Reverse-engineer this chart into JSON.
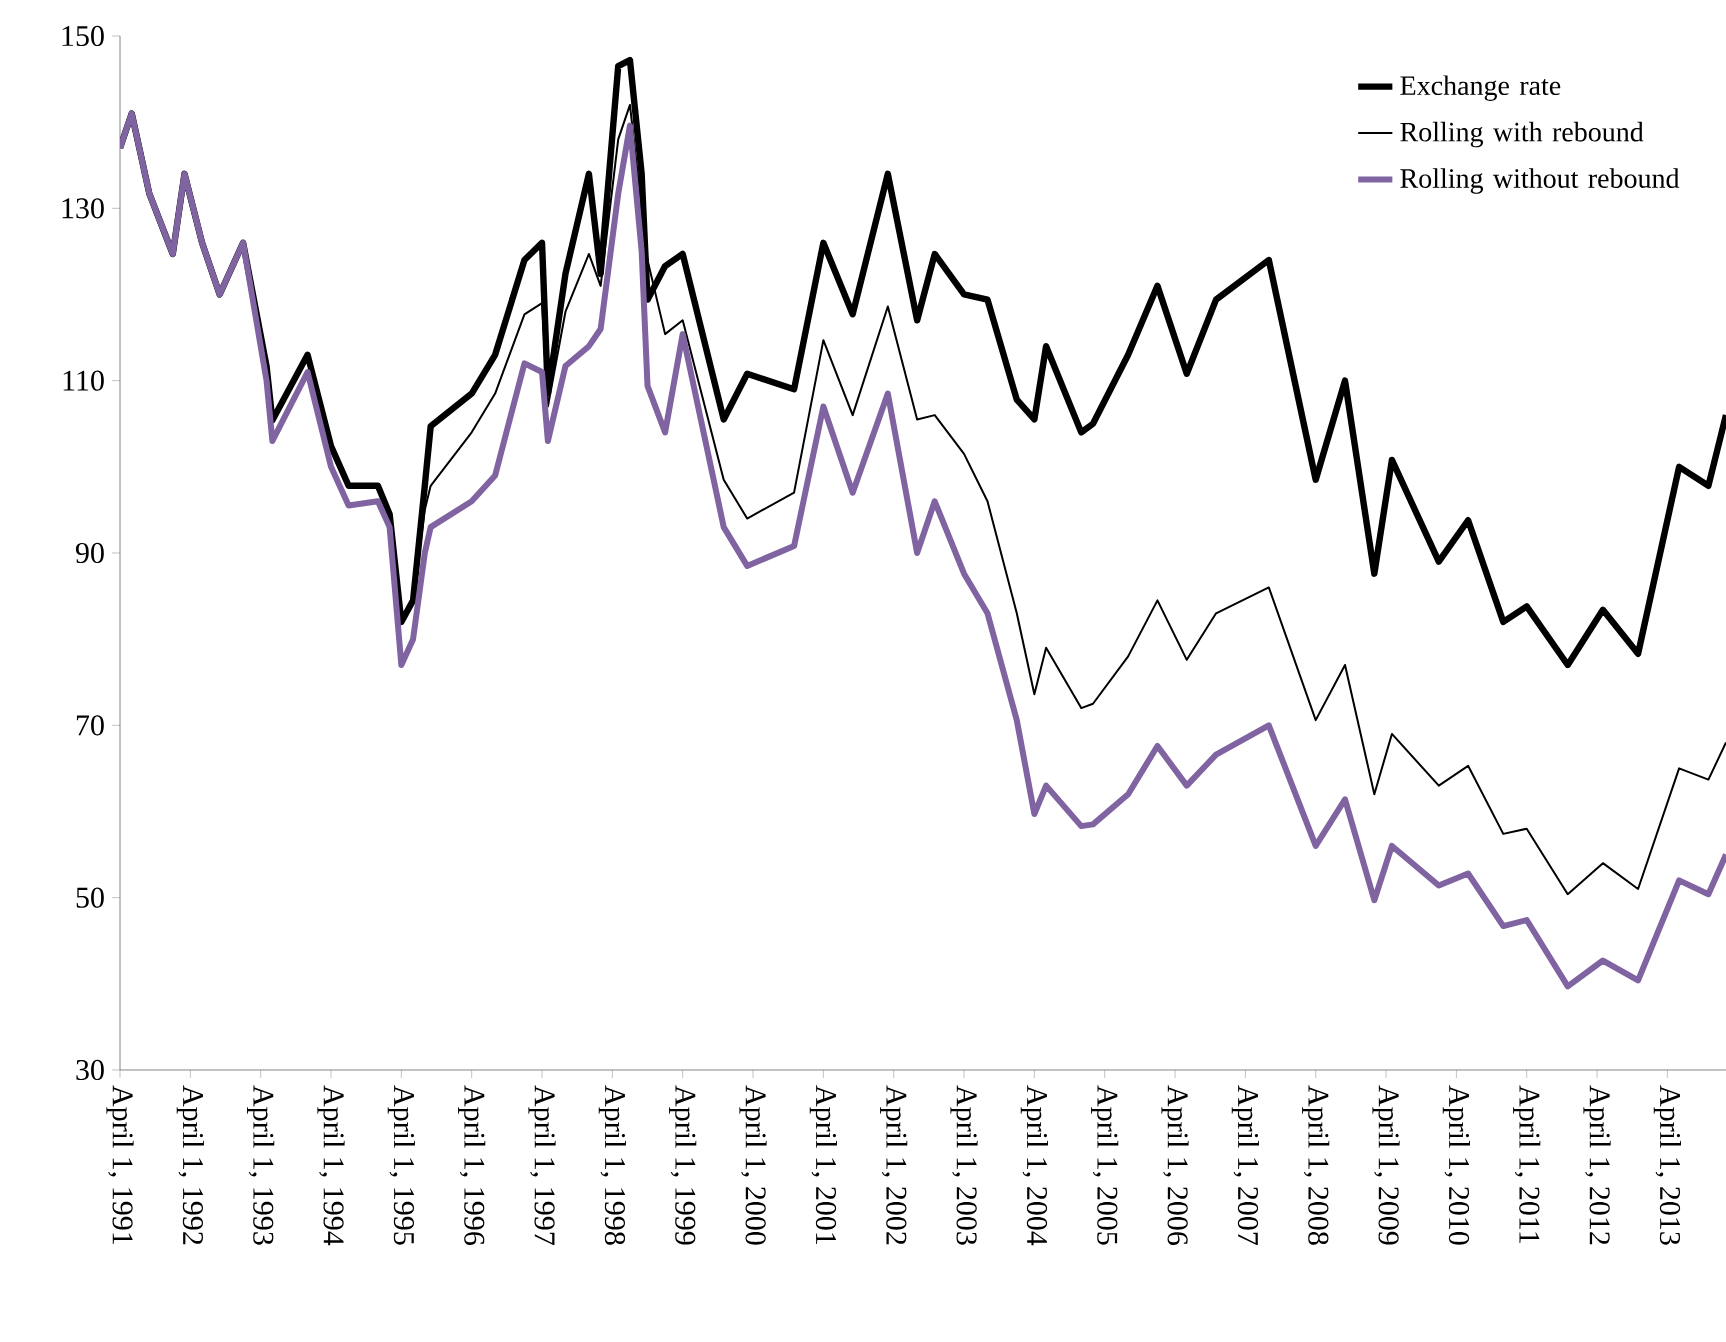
{
  "chart_data": {
    "type": "line",
    "x": [
      "1991-04",
      "1991-06",
      "1991-09",
      "1992-01",
      "1992-03",
      "1992-06",
      "1992-09",
      "1993-01",
      "1993-05",
      "1993-06",
      "1993-12",
      "1994-04",
      "1994-07",
      "1994-12",
      "1995-02",
      "1995-04",
      "1995-06",
      "1995-08",
      "1995-09",
      "1996-04",
      "1996-08",
      "1997-01",
      "1997-04",
      "1997-05",
      "1997-08",
      "1997-12",
      "1998-02",
      "1998-05",
      "1998-07",
      "1998-09",
      "1998-10",
      "1999-01",
      "1999-04",
      "1999-11",
      "2000-03",
      "2000-11",
      "2001-04",
      "2001-09",
      "2002-03",
      "2002-08",
      "2002-11",
      "2003-04",
      "2003-08",
      "2004-01",
      "2004-04",
      "2004-06",
      "2004-12",
      "2005-02",
      "2005-08",
      "2006-01",
      "2006-06",
      "2006-11",
      "2007-08",
      "2008-04",
      "2008-09",
      "2009-02",
      "2009-05",
      "2010-01",
      "2010-06",
      "2010-12",
      "2011-04",
      "2011-11",
      "2012-05",
      "2012-11",
      "2013-06",
      "2013-11",
      "2014-02"
    ],
    "series": [
      {
        "name": "Exchange rate",
        "color": "#000000",
        "values": [
          137,
          141,
          131.7,
          124.7,
          134,
          126,
          120,
          126,
          111.7,
          105.4,
          113,
          102.4,
          97.8,
          97.8,
          94.5,
          82,
          84.5,
          97.8,
          104.7,
          108.5,
          113,
          124,
          126,
          108.5,
          122.4,
          134,
          122.4,
          146.5,
          147.2,
          134,
          119.4,
          123.3,
          124.7,
          105.5,
          110.8,
          109,
          126,
          117.7,
          134,
          117,
          124.7,
          120,
          119.4,
          107.8,
          105.5,
          114,
          104,
          105,
          113,
          121,
          110.8,
          119.4,
          124,
          98.5,
          110,
          87.6,
          100.8,
          89,
          93.8,
          82,
          83.8,
          77,
          83.4,
          78.3,
          100,
          97.8,
          106
        ]
      },
      {
        "name": "Rolling with rebound",
        "color": "#000000",
        "values": [
          137,
          141,
          131.7,
          124.7,
          134,
          126,
          120,
          126,
          111.7,
          105.4,
          113,
          102.4,
          97.8,
          97.8,
          94.5,
          82,
          84.5,
          95,
          97.8,
          104,
          108.5,
          117.7,
          119,
          107,
          118,
          124.7,
          121,
          138,
          142,
          130,
          124,
          115.4,
          117,
          98.5,
          94,
          97,
          114.7,
          106,
          118.6,
          105.5,
          106,
          101.5,
          96,
          83,
          73.6,
          79,
          72,
          72.5,
          78,
          84.5,
          77.6,
          83,
          86,
          70.6,
          77,
          62,
          69,
          63,
          65.3,
          57.4,
          58,
          50.4,
          54,
          51,
          65,
          63.7,
          68
        ]
      },
      {
        "name": "Rolling without rebound",
        "color": "#8064a2",
        "values": [
          137,
          141,
          131.7,
          124.7,
          134,
          126,
          120,
          126,
          110,
          103,
          111,
          100,
          95.5,
          96,
          93,
          77,
          80,
          90,
          93,
          96,
          99,
          112,
          111,
          103,
          111.7,
          114,
          116,
          131.7,
          139.6,
          125,
          109.4,
          104,
          115.4,
          93,
          88.5,
          90.8,
          107,
          97,
          108.5,
          90,
          96,
          87.6,
          83,
          70.6,
          59.7,
          63,
          58.3,
          58.5,
          62,
          67.6,
          63,
          66.6,
          70,
          56,
          61.4,
          49.7,
          56,
          51.4,
          52.8,
          46.7,
          47.4,
          39.7,
          42.7,
          40.4,
          52,
          50.4,
          55
        ]
      }
    ],
    "xlim": [
      "1991-04-01",
      "2014-02"
    ],
    "xticks": [
      {
        "value": "1991-04-01",
        "label": "April 1, 1991"
      },
      {
        "value": "1992-04-01",
        "label": "April 1, 1992"
      },
      {
        "value": "1993-04-01",
        "label": "April 1, 1993"
      },
      {
        "value": "1994-04-01",
        "label": "April 1, 1994"
      },
      {
        "value": "1995-04-01",
        "label": "April 1, 1995"
      },
      {
        "value": "1996-04-01",
        "label": "April 1, 1996"
      },
      {
        "value": "1997-04-01",
        "label": "April 1, 1997"
      },
      {
        "value": "1998-04-01",
        "label": "April 1, 1998"
      },
      {
        "value": "1999-04-01",
        "label": "April 1, 1999"
      },
      {
        "value": "2000-04-01",
        "label": "April 1, 2000"
      },
      {
        "value": "2001-04-01",
        "label": "April 1, 2001"
      },
      {
        "value": "2002-04-01",
        "label": "April 1, 2002"
      },
      {
        "value": "2003-04-01",
        "label": "April 1, 2003"
      },
      {
        "value": "2004-04-01",
        "label": "April 1, 2004"
      },
      {
        "value": "2005-04-01",
        "label": "April 1, 2005"
      },
      {
        "value": "2006-04-01",
        "label": "April 1, 2006"
      },
      {
        "value": "2007-04-01",
        "label": "April 1, 2007"
      },
      {
        "value": "2008-04-01",
        "label": "April 1, 2008"
      },
      {
        "value": "2009-04-01",
        "label": "April 1, 2009"
      },
      {
        "value": "2010-04-01",
        "label": "April 1, 2010"
      },
      {
        "value": "2011-04-01",
        "label": "April 1, 2011"
      },
      {
        "value": "2012-04-01",
        "label": "April 1, 2012"
      },
      {
        "value": "2013-04-01",
        "label": "April 1, 2013"
      }
    ],
    "ylim": [
      30,
      150
    ],
    "yticks": [
      30,
      50,
      70,
      90,
      110,
      130,
      150
    ],
    "grid": false,
    "legend": "top right",
    "marker": "none",
    "line_style": "solid"
  }
}
